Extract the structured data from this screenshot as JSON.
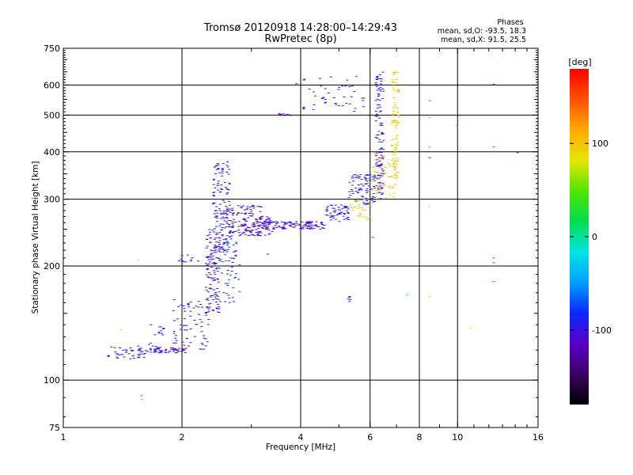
{
  "chart_data": {
    "type": "scatter",
    "title": "Tromsø 20120918 14:28:00–14:29:43",
    "subtitle": "RwPretec (8p)",
    "stats": {
      "heading": "Phases",
      "line_o": "mean, sd,O: -93.5, 18.3",
      "line_x": "mean, sd,X:  91.5, 25.5"
    },
    "xlabel": "Frequency [MHz]",
    "ylabel": "Stationary phase Virtual Height [km]",
    "x_scale": "log",
    "y_scale": "log",
    "xlim": [
      1,
      16
    ],
    "ylim": [
      75,
      750
    ],
    "x_ticks": [
      1,
      2,
      4,
      6,
      8,
      10,
      16
    ],
    "y_ticks": [
      75,
      100,
      200,
      300,
      400,
      500,
      600,
      750
    ],
    "x_grid": [
      2,
      4,
      6,
      8,
      10
    ],
    "y_grid": [
      100,
      200,
      300,
      400,
      500,
      600
    ],
    "grid": true,
    "colorbar": {
      "label": "[deg]",
      "ticks": [
        100,
        0,
        -100
      ],
      "range": [
        -180,
        180
      ],
      "colors": [
        "#000000",
        "#3c0064",
        "#5a00c8",
        "#0a28ff",
        "#00a0ff",
        "#00e6e6",
        "#00dc50",
        "#50e600",
        "#e6e600",
        "#ffaa00",
        "#ff5000",
        "#ff0000"
      ]
    },
    "series": [
      {
        "color_by": "phase_deg",
        "segments": [
          {
            "x": [
              1.3,
              1.62
            ],
            "y": [
              113,
              123
            ],
            "n": 45,
            "phase": -100
          },
          {
            "x": [
              1.62,
              2.05
            ],
            "y": [
              118,
              122
            ],
            "n": 55,
            "phase": -105
          },
          {
            "x": [
              1.65,
              1.8
            ],
            "y": [
              122,
              145
            ],
            "n": 15,
            "phase": -95
          },
          {
            "x": [
              1.9,
              2.35
            ],
            "y": [
              120,
              165
            ],
            "n": 70,
            "phase": -102
          },
          {
            "x": [
              2.3,
              2.5
            ],
            "y": [
              150,
              250
            ],
            "n": 130,
            "phase": -100
          },
          {
            "x": [
              2.4,
              2.65
            ],
            "y": [
              220,
              380
            ],
            "n": 130,
            "phase": -95
          },
          {
            "x": [
              2.5,
              2.8
            ],
            "y": [
              160,
              240
            ],
            "n": 60,
            "phase": -85
          },
          {
            "x": [
              2.62,
              3.2
            ],
            "y": [
              240,
              290
            ],
            "n": 110,
            "phase": -105
          },
          {
            "x": [
              2.85,
              3.4
            ],
            "y": [
              240,
              270
            ],
            "n": 60,
            "phase": -110
          },
          {
            "x": [
              3.2,
              4.6
            ],
            "y": [
              250,
              262
            ],
            "n": 120,
            "phase": -112
          },
          {
            "x": [
              4.6,
              5.3
            ],
            "y": [
              262,
              290
            ],
            "n": 60,
            "phase": -95
          },
          {
            "x": [
              5.3,
              6.2
            ],
            "y": [
              290,
              350
            ],
            "n": 90,
            "phase": -90
          },
          {
            "x": [
              5.3,
              6.1
            ],
            "y": [
              268,
              300
            ],
            "n": 25,
            "phase": 95
          },
          {
            "x": [
              6.2,
              6.5
            ],
            "y": [
              300,
              650
            ],
            "n": 120,
            "phase": -100
          },
          {
            "x": [
              6.1,
              7.0
            ],
            "y": [
              300,
              400
            ],
            "n": 50,
            "phase": 100
          },
          {
            "x": [
              6.8,
              7.1
            ],
            "y": [
              340,
              650
            ],
            "n": 90,
            "phase": 95
          },
          {
            "x": [
              4.0,
              5.9
            ],
            "y": [
              510,
              640
            ],
            "n": 45,
            "phase": -95
          },
          {
            "x": [
              3.5,
              3.8
            ],
            "y": [
              498,
              505
            ],
            "n": 10,
            "phase": -110
          },
          {
            "x": [
              1.95,
              2.2
            ],
            "y": [
              205,
              215
            ],
            "n": 12,
            "phase": -100
          },
          {
            "x": [
              5.25,
              5.35
            ],
            "y": [
              160,
              166
            ],
            "n": 6,
            "phase": -100
          }
        ],
        "points": [
          {
            "x": 1.4,
            "y": 136,
            "phase": 100
          },
          {
            "x": 1.55,
            "y": 207,
            "phase": 95
          },
          {
            "x": 1.58,
            "y": 91,
            "phase": 150
          },
          {
            "x": 1.58,
            "y": 89,
            "phase": 110
          },
          {
            "x": 3.3,
            "y": 215,
            "phase": -100
          },
          {
            "x": 3.9,
            "y": 605,
            "phase": -110
          },
          {
            "x": 5.92,
            "y": 265,
            "phase": 80
          },
          {
            "x": 6.1,
            "y": 238,
            "phase": 160
          },
          {
            "x": 7.45,
            "y": 168,
            "phase": -20
          },
          {
            "x": 8.5,
            "y": 545,
            "phase": 150
          },
          {
            "x": 8.5,
            "y": 492,
            "phase": 120
          },
          {
            "x": 8.5,
            "y": 412,
            "phase": -30
          },
          {
            "x": 8.5,
            "y": 386,
            "phase": -110
          },
          {
            "x": 8.5,
            "y": 287,
            "phase": 90
          },
          {
            "x": 8.5,
            "y": 166,
            "phase": 80
          },
          {
            "x": 9.95,
            "y": 470,
            "phase": -30
          },
          {
            "x": 10.8,
            "y": 137,
            "phase": 95
          },
          {
            "x": 12.35,
            "y": 603,
            "phase": 170
          },
          {
            "x": 12.35,
            "y": 412,
            "phase": 165
          },
          {
            "x": 12.35,
            "y": 210,
            "phase": 160
          },
          {
            "x": 12.35,
            "y": 204,
            "phase": 165
          },
          {
            "x": 12.35,
            "y": 182,
            "phase": 145
          },
          {
            "x": 14.2,
            "y": 398,
            "phase": -80
          }
        ]
      }
    ]
  }
}
